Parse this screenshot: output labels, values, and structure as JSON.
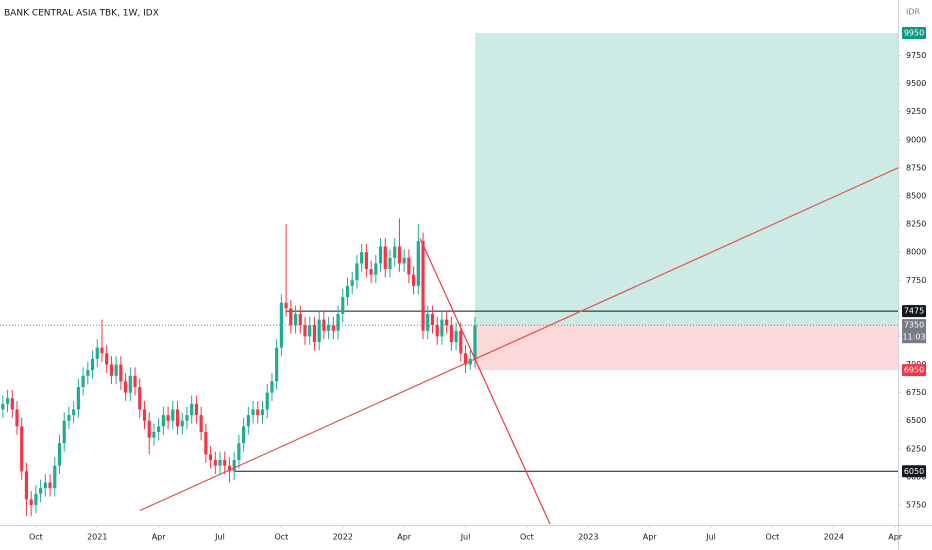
{
  "chart_data": {
    "type": "candlestick",
    "title": "BANK CENTRAL ASIA TBK, 1W, IDX",
    "currency": "IDR",
    "countdown": "11:03",
    "up_color": "#22ab94",
    "down_color": "#f23645",
    "x": [
      -7,
      -6,
      -5,
      -4,
      -3,
      -2,
      -1,
      0,
      1,
      2,
      3,
      4,
      5,
      6,
      7,
      8,
      9,
      10,
      11,
      12,
      13,
      14,
      15,
      16,
      17,
      18,
      19,
      20,
      21,
      22,
      23,
      24,
      25,
      26,
      27,
      28,
      29,
      30,
      31,
      32,
      33,
      34,
      35,
      36,
      37,
      38,
      39,
      40,
      41,
      42,
      43,
      44,
      45,
      46,
      47,
      48,
      49,
      50,
      51,
      52,
      53,
      54,
      55,
      56,
      57,
      58,
      59,
      60,
      61,
      62,
      63,
      64,
      65,
      66,
      67,
      68,
      69,
      70,
      71,
      72,
      73,
      74,
      75,
      76,
      77,
      78,
      79,
      80,
      81,
      82,
      83,
      84,
      85,
      86,
      87,
      88,
      89,
      90,
      91,
      92,
      93
    ],
    "open": [
      6600,
      6650,
      6700,
      6600,
      6450,
      6050,
      5800,
      5750,
      5850,
      5900,
      5950,
      5900,
      6100,
      6300,
      6500,
      6550,
      6600,
      6800,
      6900,
      6950,
      7050,
      7150,
      7100,
      7000,
      6900,
      7000,
      6850,
      6750,
      6900,
      6800,
      6600,
      6500,
      6350,
      6400,
      6450,
      6550,
      6500,
      6600,
      6450,
      6500,
      6550,
      6650,
      6550,
      6400,
      6200,
      6150,
      6100,
      6150,
      6100,
      6050,
      6150,
      6300,
      6450,
      6550,
      6600,
      6550,
      6600,
      6750,
      6850,
      7150,
      7550,
      7500,
      7350,
      7450,
      7350,
      7250,
      7350,
      7200,
      7400,
      7300,
      7350,
      7300,
      7450,
      7600,
      7700,
      7750,
      7900,
      8000,
      7850,
      7800,
      7900,
      8050,
      7850,
      7950,
      8050,
      7900,
      7950,
      7800,
      7700,
      8100,
      7300,
      7450,
      7350,
      7250,
      7400,
      7350,
      7200,
      7300,
      7100,
      7000,
      7050
    ],
    "high": [
      6725,
      6775,
      6775,
      6675,
      6525,
      6125,
      5875,
      5925,
      5975,
      6025,
      6025,
      6175,
      6375,
      6575,
      6625,
      6675,
      6875,
      6975,
      7025,
      7125,
      7225,
      7400,
      7175,
      7075,
      7075,
      7075,
      6925,
      6975,
      6975,
      6875,
      6675,
      6575,
      6475,
      6525,
      6625,
      6625,
      6675,
      6675,
      6575,
      6625,
      6725,
      6725,
      6625,
      6475,
      6275,
      6225,
      6225,
      6225,
      6175,
      6225,
      6375,
      6525,
      6625,
      6675,
      6675,
      6675,
      6825,
      6925,
      7225,
      7625,
      8250,
      7575,
      7525,
      7525,
      7425,
      7425,
      7425,
      7475,
      7475,
      7425,
      7425,
      7525,
      7675,
      7775,
      7825,
      7975,
      8075,
      8075,
      7925,
      7975,
      8125,
      8125,
      8025,
      8125,
      8300,
      8025,
      8025,
      7875,
      8250,
      8175,
      7525,
      7525,
      7425,
      7475,
      7475,
      7425,
      7375,
      7375,
      7175,
      7125,
      7425
    ],
    "low": [
      6525,
      6575,
      6525,
      6375,
      5975,
      5650,
      5650,
      5675,
      5775,
      5825,
      5825,
      5825,
      6025,
      6225,
      6425,
      6475,
      6525,
      6725,
      6825,
      6875,
      6975,
      7025,
      6925,
      6825,
      6825,
      6775,
      6675,
      6675,
      6725,
      6525,
      6425,
      6200,
      6275,
      6325,
      6375,
      6425,
      6425,
      6375,
      6375,
      6425,
      6475,
      6475,
      6325,
      6125,
      6075,
      6025,
      6025,
      6025,
      5950,
      5975,
      6075,
      6225,
      6375,
      6475,
      6475,
      6475,
      6525,
      6675,
      6775,
      7075,
      7425,
      7275,
      7275,
      7275,
      7175,
      7175,
      7125,
      7125,
      7225,
      7225,
      7225,
      7225,
      7375,
      7525,
      7625,
      7675,
      7825,
      7775,
      7725,
      7725,
      7825,
      7775,
      7775,
      7875,
      7825,
      7825,
      7725,
      7625,
      7625,
      7225,
      7225,
      7275,
      7175,
      7175,
      7275,
      7125,
      7125,
      7025,
      6925,
      6950,
      6975
    ],
    "close": [
      6650,
      6700,
      6600,
      6450,
      6050,
      5800,
      5750,
      5850,
      5900,
      5950,
      5900,
      6100,
      6300,
      6500,
      6550,
      6600,
      6800,
      6900,
      6950,
      7050,
      7150,
      7100,
      7000,
      6900,
      7000,
      6850,
      6750,
      6900,
      6800,
      6600,
      6500,
      6350,
      6400,
      6450,
      6550,
      6500,
      6600,
      6450,
      6500,
      6550,
      6650,
      6550,
      6400,
      6200,
      6150,
      6100,
      6150,
      6100,
      6050,
      6150,
      6300,
      6450,
      6550,
      6600,
      6550,
      6600,
      6750,
      6850,
      7150,
      7550,
      7500,
      7350,
      7450,
      7350,
      7250,
      7350,
      7200,
      7400,
      7300,
      7350,
      7300,
      7450,
      7600,
      7700,
      7750,
      7900,
      8000,
      7850,
      7800,
      7900,
      8050,
      7850,
      7950,
      8050,
      7900,
      7950,
      7800,
      7700,
      8100,
      7300,
      7450,
      7350,
      7250,
      7400,
      7350,
      7200,
      7300,
      7100,
      7000,
      7050,
      7350
    ],
    "xlim": [
      -7.6,
      182.6
    ],
    "ylim": [
      5572,
      10244
    ],
    "xticks": [
      {
        "value": 0,
        "label": "Oct"
      },
      {
        "value": 13,
        "label": "2021"
      },
      {
        "value": 26,
        "label": "Apr"
      },
      {
        "value": 39,
        "label": "Jul"
      },
      {
        "value": 52,
        "label": "Oct"
      },
      {
        "value": 65,
        "label": "2022"
      },
      {
        "value": 78,
        "label": "Apr"
      },
      {
        "value": 91,
        "label": "Jul"
      },
      {
        "value": 104,
        "label": "Oct"
      },
      {
        "value": 117,
        "label": "2023"
      },
      {
        "value": 130,
        "label": "Apr"
      },
      {
        "value": 143,
        "label": "Jul"
      },
      {
        "value": 156,
        "label": "Oct"
      },
      {
        "value": 169,
        "label": "2024"
      },
      {
        "value": 182,
        "label": "Apr"
      }
    ],
    "yticks": [
      5750,
      6000,
      6250,
      6500,
      6750,
      7000,
      7250,
      7500,
      7750,
      8000,
      8250,
      8500,
      8750,
      9000,
      9250,
      9500,
      9750
    ],
    "position": {
      "x": [
        93,
        182.6
      ],
      "target": 9950,
      "entry": 7350,
      "stop": 6950,
      "profit_color": "#cdebe6",
      "loss_color": "#fcd9d9"
    },
    "hlines": [
      {
        "value": 7475,
        "x": [
          53,
          182.6
        ]
      },
      {
        "value": 6050,
        "x": [
          42,
          182.6
        ]
      }
    ],
    "last_price": 7350,
    "trend_lines": [
      {
        "x": [
          22,
          182.6
        ],
        "y": [
          5700,
          8750
        ],
        "color": "#e0524f"
      },
      {
        "x": [
          81.4,
          108.9
        ],
        "y": [
          8120,
          5580
        ],
        "color": "#f23645"
      }
    ],
    "price_labels": [
      {
        "value": 9950,
        "color": "#089981"
      },
      {
        "value": 7475,
        "color": "#131722"
      },
      {
        "value": 7350,
        "color": "#787b86"
      },
      {
        "value": 6950,
        "color": "#f23645"
      },
      {
        "value": 6050,
        "color": "#131722"
      }
    ]
  }
}
